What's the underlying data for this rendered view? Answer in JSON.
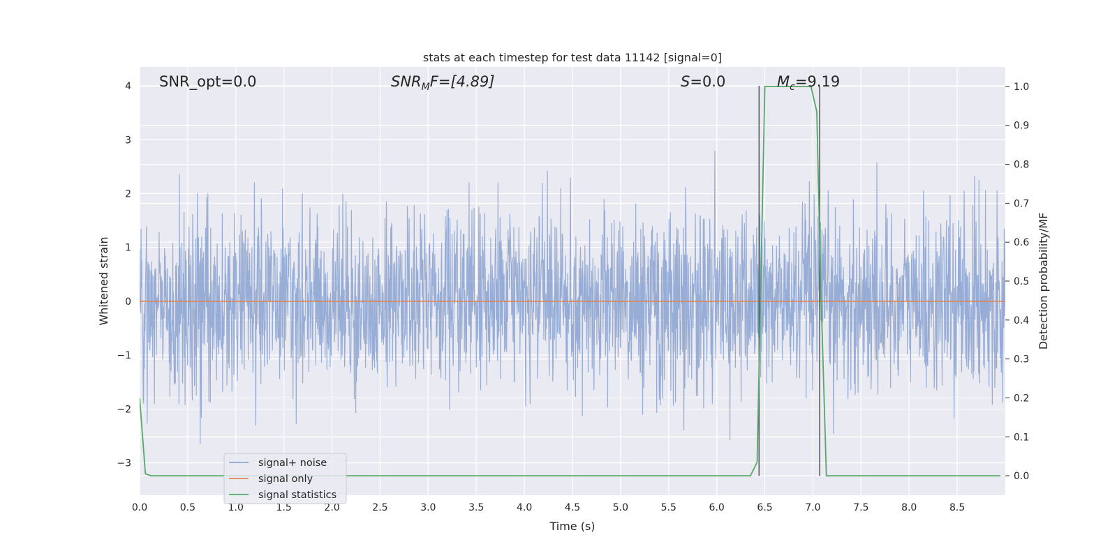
{
  "chart_data": {
    "type": "line",
    "title": "stats at each timestep for test data 11142 [signal=0]",
    "xlabel": "Time (s)",
    "ylabel": "Whitened strain",
    "y2label": "Detection probability/MF",
    "xlim": [
      0,
      9.0
    ],
    "ylim": [
      -3.6,
      4.35
    ],
    "y2lim": [
      -0.05,
      1.05
    ],
    "x_ticks": [
      0.0,
      0.5,
      1.0,
      1.5,
      2.0,
      2.5,
      3.0,
      3.5,
      4.0,
      4.5,
      5.0,
      5.5,
      6.0,
      6.5,
      7.0,
      7.5,
      8.0,
      8.5
    ],
    "y_ticks": [
      -3,
      -2,
      -1,
      0,
      1,
      2,
      3,
      4
    ],
    "y_tick_labels": [
      "−3",
      "−2",
      "−1",
      "0",
      "1",
      "2",
      "3",
      "4"
    ],
    "y2_ticks": [
      0.0,
      0.1,
      0.2,
      0.3,
      0.4,
      0.5,
      0.6,
      0.7,
      0.8,
      0.9,
      1.0
    ],
    "grid": true,
    "legend_placement": "lower-left",
    "annotations": {
      "snr_opt": "SNR_opt=0.0",
      "snr_mf_main": "SNR",
      "snr_mf_sub": "M",
      "snr_mf_rest": "F=[4.89]",
      "s_main": "S",
      "s_rest": "=0.0",
      "mc_main": "M",
      "mc_sub": "c",
      "mc_rest": "=9.19"
    },
    "vertical_lines_x": [
      6.44,
      7.07
    ],
    "series": [
      {
        "name": "signal+ noise",
        "color": "#8fa6d2",
        "axis": "left",
        "noise_std": 0.82,
        "sample_count": 2400,
        "seed": 11142
      },
      {
        "name": "signal only",
        "color": "#dd8452",
        "axis": "left",
        "x": [
          0,
          9.0
        ],
        "y": [
          0,
          0
        ]
      },
      {
        "name": "signal statistics",
        "color": "#55a868",
        "axis": "right",
        "x": [
          0.0,
          0.06,
          0.12,
          6.35,
          6.42,
          6.5,
          6.98,
          7.04,
          7.08,
          7.14,
          8.95
        ],
        "y": [
          0.2,
          0.005,
          0.0,
          0.0,
          0.035,
          1.0,
          1.0,
          0.935,
          0.5,
          0.0,
          0.0
        ]
      }
    ]
  }
}
